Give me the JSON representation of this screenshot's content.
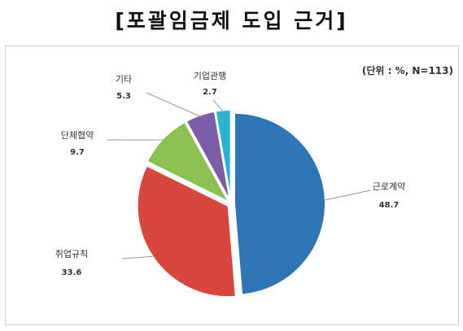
{
  "title": "[포괄임금제 도입 근거]",
  "unit_note": "(단위 : %, N=113)",
  "chart_data": {
    "type": "pie",
    "title": "[포괄임금제 도입 근거]",
    "unit_note": "(단위 : %, N=113)",
    "slices": [
      {
        "label": "근로계약",
        "value": 48.7,
        "value_text": "48.7",
        "color": "#2e75b6"
      },
      {
        "label": "취업규칙",
        "value": 33.6,
        "value_text": "33.6",
        "color": "#d9453f"
      },
      {
        "label": "단체협약",
        "value": 9.7,
        "value_text": "9.7",
        "color": "#8cc152"
      },
      {
        "label": "기타",
        "value": 5.3,
        "value_text": "5.3",
        "color": "#7b5ea7"
      },
      {
        "label": "기업관행",
        "value": 2.7,
        "value_text": "2.7",
        "color": "#2bb3d6"
      }
    ]
  }
}
